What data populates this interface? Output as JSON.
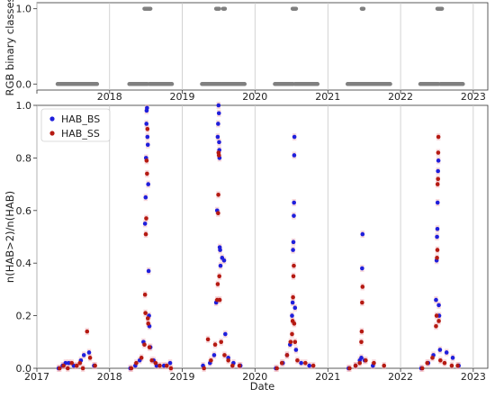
{
  "chart_data": [
    {
      "type": "scatter",
      "ylabel": "RGB binary classes",
      "xlabel": "",
      "xlim": [
        "2017-01-01",
        "2023-03-15"
      ],
      "ylim": [
        -0.08,
        1.08
      ],
      "y_ticks": [
        "0.0",
        "1.0"
      ],
      "grid": "vertical",
      "color": "#808080",
      "segments": [
        {
          "x0": "2017-04-15",
          "x1": "2017-10-30",
          "y": 0
        },
        {
          "x0": "2018-04-10",
          "x1": "2018-07-10",
          "y": 0
        },
        {
          "x0": "2018-07-20",
          "x1": "2018-11-10",
          "y": 0
        },
        {
          "x0": "2019-04-10",
          "x1": "2019-07-15",
          "y": 0
        },
        {
          "x0": "2019-07-20",
          "x1": "2019-11-10",
          "y": 0
        },
        {
          "x0": "2020-04-10",
          "x1": "2020-07-10",
          "y": 0
        },
        {
          "x0": "2020-07-20",
          "x1": "2020-11-10",
          "y": 0
        },
        {
          "x0": "2021-04-10",
          "x1": "2021-11-10",
          "y": 0
        },
        {
          "x0": "2022-04-10",
          "x1": "2022-07-10",
          "y": 0
        },
        {
          "x0": "2022-07-20",
          "x1": "2022-11-10",
          "y": 0
        },
        {
          "x0": "2018-06-25",
          "x1": "2018-07-25",
          "y": 1
        },
        {
          "x0": "2019-06-20",
          "x1": "2019-07-05",
          "y": 1
        },
        {
          "x0": "2019-07-25",
          "x1": "2019-07-30",
          "y": 1
        },
        {
          "x0": "2020-07-08",
          "x1": "2020-07-25",
          "y": 1
        },
        {
          "x0": "2021-06-20",
          "x1": "2021-06-24",
          "y": 1
        },
        {
          "x0": "2022-07-05",
          "x1": "2022-07-28",
          "y": 1
        }
      ]
    },
    {
      "type": "scatter",
      "xlabel": "Date",
      "ylabel": "n(HAB>2)/n(HAB)",
      "xlim": [
        "2017-01-01",
        "2023-03-15"
      ],
      "ylim": [
        0,
        1.0
      ],
      "x_ticks": [
        "2017",
        "2018",
        "2019",
        "2020",
        "2021",
        "2022",
        "2023"
      ],
      "y_ticks": [
        "0.0",
        "0.2",
        "0.4",
        "0.6",
        "0.8",
        "1.0"
      ],
      "grid": "vertical",
      "legend": "top-left",
      "series": [
        {
          "name": "HAB_BS",
          "color": "#1f1fdc",
          "points": [
            [
              "2017-04-20",
              0.0
            ],
            [
              "2017-05-10",
              0.01
            ],
            [
              "2017-05-25",
              0.02
            ],
            [
              "2017-06-10",
              0.02
            ],
            [
              "2017-07-05",
              0.01
            ],
            [
              "2017-08-10",
              0.03
            ],
            [
              "2017-08-25",
              0.05
            ],
            [
              "2017-09-20",
              0.06
            ],
            [
              "2017-10-15",
              0.01
            ],
            [
              "2018-04-15",
              0.0
            ],
            [
              "2018-05-10",
              0.01
            ],
            [
              "2018-06-01",
              0.03
            ],
            [
              "2018-06-20",
              0.1
            ],
            [
              "2018-06-28",
              0.55
            ],
            [
              "2018-07-01",
              0.65
            ],
            [
              "2018-07-03",
              0.8
            ],
            [
              "2018-07-05",
              0.93
            ],
            [
              "2018-07-06",
              0.98
            ],
            [
              "2018-07-08",
              0.99
            ],
            [
              "2018-07-10",
              0.88
            ],
            [
              "2018-07-12",
              0.85
            ],
            [
              "2018-07-14",
              0.7
            ],
            [
              "2018-07-16",
              0.37
            ],
            [
              "2018-07-18",
              0.2
            ],
            [
              "2018-07-20",
              0.16
            ],
            [
              "2018-07-25",
              0.08
            ],
            [
              "2018-08-10",
              0.03
            ],
            [
              "2018-08-25",
              0.01
            ],
            [
              "2018-10-01",
              0.01
            ],
            [
              "2018-11-01",
              0.02
            ],
            [
              "2019-04-15",
              0.01
            ],
            [
              "2019-05-20",
              0.02
            ],
            [
              "2019-06-10",
              0.05
            ],
            [
              "2019-06-20",
              0.25
            ],
            [
              "2019-06-25",
              0.6
            ],
            [
              "2019-06-28",
              0.88
            ],
            [
              "2019-06-30",
              0.93
            ],
            [
              "2019-07-02",
              1.0
            ],
            [
              "2019-07-04",
              0.97
            ],
            [
              "2019-07-05",
              0.86
            ],
            [
              "2019-07-06",
              0.83
            ],
            [
              "2019-07-07",
              0.8
            ],
            [
              "2019-07-08",
              0.46
            ],
            [
              "2019-07-10",
              0.45
            ],
            [
              "2019-07-12",
              0.39
            ],
            [
              "2019-07-20",
              0.42
            ],
            [
              "2019-07-30",
              0.41
            ],
            [
              "2019-08-05",
              0.13
            ],
            [
              "2019-08-20",
              0.04
            ],
            [
              "2019-09-15",
              0.02
            ],
            [
              "2019-10-20",
              0.01
            ],
            [
              "2020-04-15",
              0.0
            ],
            [
              "2020-05-20",
              0.02
            ],
            [
              "2020-06-10",
              0.05
            ],
            [
              "2020-06-25",
              0.09
            ],
            [
              "2020-07-05",
              0.2
            ],
            [
              "2020-07-08",
              0.25
            ],
            [
              "2020-07-10",
              0.45
            ],
            [
              "2020-07-12",
              0.48
            ],
            [
              "2020-07-14",
              0.58
            ],
            [
              "2020-07-15",
              0.63
            ],
            [
              "2020-07-16",
              0.81
            ],
            [
              "2020-07-17",
              0.88
            ],
            [
              "2020-07-20",
              0.23
            ],
            [
              "2020-07-25",
              0.07
            ],
            [
              "2020-08-20",
              0.02
            ],
            [
              "2020-09-30",
              0.01
            ],
            [
              "2021-04-15",
              0.0
            ],
            [
              "2021-05-20",
              0.01
            ],
            [
              "2021-06-10",
              0.03
            ],
            [
              "2021-06-18",
              0.04
            ],
            [
              "2021-06-22",
              0.38
            ],
            [
              "2021-06-24",
              0.51
            ],
            [
              "2021-07-05",
              0.03
            ],
            [
              "2021-08-15",
              0.01
            ],
            [
              "2022-04-15",
              0.0
            ],
            [
              "2022-05-20",
              0.02
            ],
            [
              "2022-06-15",
              0.05
            ],
            [
              "2022-06-28",
              0.26
            ],
            [
              "2022-07-01",
              0.41
            ],
            [
              "2022-07-03",
              0.5
            ],
            [
              "2022-07-05",
              0.53
            ],
            [
              "2022-07-06",
              0.63
            ],
            [
              "2022-07-08",
              0.75
            ],
            [
              "2022-07-10",
              0.79
            ],
            [
              "2022-07-12",
              0.24
            ],
            [
              "2022-07-14",
              0.2
            ],
            [
              "2022-07-18",
              0.07
            ],
            [
              "2022-08-20",
              0.06
            ],
            [
              "2022-09-20",
              0.04
            ],
            [
              "2022-10-20",
              0.01
            ]
          ]
        },
        {
          "name": "HAB_SS",
          "color": "#b51a12",
          "points": [
            [
              "2017-04-25",
              0.0
            ],
            [
              "2017-05-15",
              0.01
            ],
            [
              "2017-06-05",
              0.0
            ],
            [
              "2017-06-25",
              0.02
            ],
            [
              "2017-07-20",
              0.01
            ],
            [
              "2017-08-05",
              0.02
            ],
            [
              "2017-08-20",
              0.0
            ],
            [
              "2017-09-10",
              0.14
            ],
            [
              "2017-09-25",
              0.04
            ],
            [
              "2017-10-20",
              0.01
            ],
            [
              "2018-04-20",
              0.0
            ],
            [
              "2018-05-15",
              0.02
            ],
            [
              "2018-06-10",
              0.04
            ],
            [
              "2018-06-25",
              0.09
            ],
            [
              "2018-06-28",
              0.28
            ],
            [
              "2018-06-30",
              0.21
            ],
            [
              "2018-07-02",
              0.51
            ],
            [
              "2018-07-04",
              0.57
            ],
            [
              "2018-07-06",
              0.79
            ],
            [
              "2018-07-08",
              0.74
            ],
            [
              "2018-07-10",
              0.91
            ],
            [
              "2018-07-12",
              0.19
            ],
            [
              "2018-07-14",
              0.17
            ],
            [
              "2018-07-20",
              0.08
            ],
            [
              "2018-08-01",
              0.03
            ],
            [
              "2018-08-20",
              0.02
            ],
            [
              "2018-09-10",
              0.01
            ],
            [
              "2018-10-15",
              0.01
            ],
            [
              "2018-11-05",
              0.0
            ],
            [
              "2019-04-20",
              0.0
            ],
            [
              "2019-05-10",
              0.11
            ],
            [
              "2019-05-25",
              0.03
            ],
            [
              "2019-06-15",
              0.09
            ],
            [
              "2019-06-25",
              0.26
            ],
            [
              "2019-06-28",
              0.32
            ],
            [
              "2019-06-30",
              0.59
            ],
            [
              "2019-07-01",
              0.66
            ],
            [
              "2019-07-02",
              0.82
            ],
            [
              "2019-07-04",
              0.81
            ],
            [
              "2019-07-06",
              0.35
            ],
            [
              "2019-07-08",
              0.26
            ],
            [
              "2019-07-15",
              0.1
            ],
            [
              "2019-08-01",
              0.05
            ],
            [
              "2019-08-20",
              0.03
            ],
            [
              "2019-09-10",
              0.01
            ],
            [
              "2019-10-15",
              0.01
            ],
            [
              "2020-04-20",
              0.0
            ],
            [
              "2020-05-15",
              0.02
            ],
            [
              "2020-06-10",
              0.05
            ],
            [
              "2020-06-28",
              0.1
            ],
            [
              "2020-07-05",
              0.13
            ],
            [
              "2020-07-08",
              0.18
            ],
            [
              "2020-07-10",
              0.27
            ],
            [
              "2020-07-12",
              0.35
            ],
            [
              "2020-07-14",
              0.39
            ],
            [
              "2020-07-16",
              0.17
            ],
            [
              "2020-07-20",
              0.1
            ],
            [
              "2020-08-01",
              0.03
            ],
            [
              "2020-09-10",
              0.02
            ],
            [
              "2020-10-20",
              0.01
            ],
            [
              "2021-04-20",
              0.0
            ],
            [
              "2021-05-20",
              0.01
            ],
            [
              "2021-06-10",
              0.02
            ],
            [
              "2021-06-18",
              0.1
            ],
            [
              "2021-06-20",
              0.14
            ],
            [
              "2021-06-22",
              0.25
            ],
            [
              "2021-06-24",
              0.31
            ],
            [
              "2021-07-10",
              0.03
            ],
            [
              "2021-08-20",
              0.02
            ],
            [
              "2021-10-10",
              0.01
            ],
            [
              "2022-04-20",
              0.0
            ],
            [
              "2022-05-15",
              0.02
            ],
            [
              "2022-06-10",
              0.04
            ],
            [
              "2022-06-28",
              0.16
            ],
            [
              "2022-07-01",
              0.2
            ],
            [
              "2022-07-03",
              0.42
            ],
            [
              "2022-07-05",
              0.45
            ],
            [
              "2022-07-06",
              0.7
            ],
            [
              "2022-07-08",
              0.72
            ],
            [
              "2022-07-09",
              0.82
            ],
            [
              "2022-07-10",
              0.88
            ],
            [
              "2022-07-12",
              0.18
            ],
            [
              "2022-07-20",
              0.03
            ],
            [
              "2022-08-10",
              0.02
            ],
            [
              "2022-09-15",
              0.01
            ],
            [
              "2022-10-15",
              0.01
            ]
          ]
        }
      ]
    }
  ]
}
